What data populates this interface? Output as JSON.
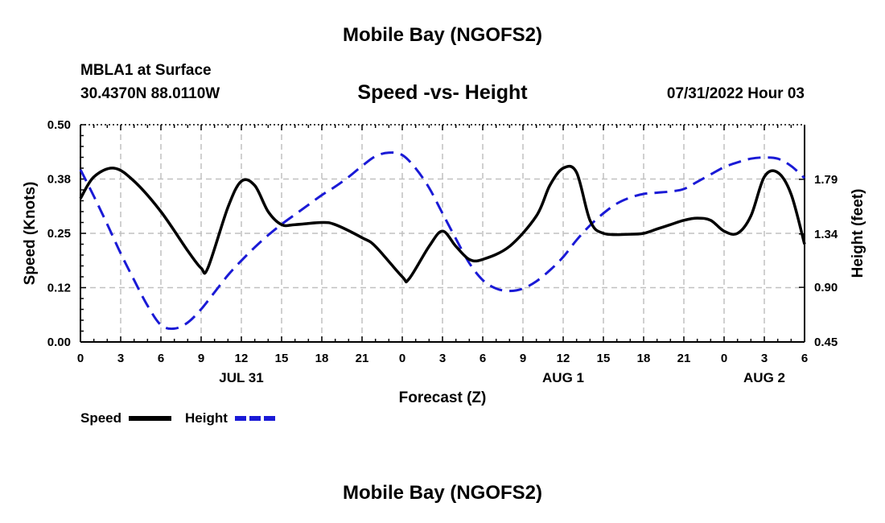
{
  "header": {
    "title": "Mobile Bay (NGOFS2)",
    "station": "MBLA1 at Surface",
    "coords": "30.4370N  88.0110W",
    "subtitle": "Speed -vs- Height",
    "datetime": "07/31/2022 Hour 03"
  },
  "footer": {
    "title": "Mobile Bay (NGOFS2)"
  },
  "chart_data": {
    "type": "line",
    "title": "Speed -vs- Height",
    "xlabel": "Forecast (Z)",
    "ylabel_left": "Speed (Knots)",
    "ylabel_right": "Height (feet)",
    "x_tick_labels": [
      "0",
      "3",
      "6",
      "9",
      "12",
      "15",
      "18",
      "21",
      "0",
      "3",
      "6",
      "9",
      "12",
      "15",
      "18",
      "21",
      "0",
      "3",
      "6"
    ],
    "date_labels": [
      {
        "hour": 12,
        "label": "JUL 31"
      },
      {
        "hour": 36,
        "label": "AUG 1"
      },
      {
        "hour": 51,
        "label": "AUG 2"
      }
    ],
    "x_range": [
      0,
      54
    ],
    "y_left_ticks": [
      "0.00",
      "0.12",
      "0.25",
      "0.38",
      "0.50"
    ],
    "y_left_range": [
      0,
      0.5
    ],
    "y_right_ticks": [
      "0.45",
      "0.90",
      "1.34",
      "1.79"
    ],
    "y_right_range": [
      0.45,
      2.24
    ],
    "grid": true,
    "legend": "bottom-left",
    "colors": {
      "speed": "#000000",
      "height": "#1a1ad6",
      "grid": "#c0c0c0"
    },
    "series": [
      {
        "name": "Speed",
        "axis": "left",
        "x": [
          0,
          1,
          2.5,
          4,
          6,
          8,
          9,
          9.5,
          11,
          12,
          13,
          14,
          15,
          16,
          18,
          19,
          21,
          22,
          24,
          24.5,
          26,
          27,
          28,
          29,
          30,
          32,
          34,
          35,
          36,
          37,
          38,
          39,
          41,
          42,
          43,
          44,
          45,
          46,
          47,
          48,
          49,
          50,
          51,
          52,
          53,
          54
        ],
        "values": [
          0.33,
          0.38,
          0.4,
          0.37,
          0.3,
          0.21,
          0.17,
          0.17,
          0.31,
          0.37,
          0.36,
          0.3,
          0.27,
          0.27,
          0.275,
          0.27,
          0.24,
          0.22,
          0.15,
          0.145,
          0.22,
          0.255,
          0.22,
          0.19,
          0.19,
          0.22,
          0.29,
          0.36,
          0.4,
          0.39,
          0.28,
          0.25,
          0.248,
          0.25,
          0.26,
          0.27,
          0.28,
          0.285,
          0.28,
          0.255,
          0.25,
          0.29,
          0.38,
          0.39,
          0.34,
          0.225
        ]
      },
      {
        "name": "Height",
        "axis": "right",
        "x": [
          0,
          1,
          2,
          3,
          4,
          5,
          6,
          7,
          8,
          9,
          10,
          11,
          12,
          13,
          14,
          15,
          16,
          17,
          18,
          19,
          20,
          21,
          22,
          23,
          24,
          25,
          26,
          27,
          28,
          29,
          30,
          31,
          32,
          33,
          34,
          35,
          36,
          37,
          38,
          39,
          40,
          41,
          42,
          43,
          44,
          45,
          46,
          47,
          48,
          49,
          50,
          51,
          52,
          53,
          54
        ],
        "values": [
          1.87,
          1.65,
          1.42,
          1.18,
          0.96,
          0.75,
          0.59,
          0.56,
          0.61,
          0.72,
          0.86,
          1.0,
          1.12,
          1.23,
          1.33,
          1.42,
          1.5,
          1.58,
          1.66,
          1.73,
          1.81,
          1.9,
          1.98,
          2.01,
          1.99,
          1.88,
          1.72,
          1.51,
          1.3,
          1.1,
          0.96,
          0.89,
          0.87,
          0.89,
          0.95,
          1.04,
          1.15,
          1.29,
          1.41,
          1.51,
          1.59,
          1.64,
          1.67,
          1.68,
          1.69,
          1.71,
          1.77,
          1.83,
          1.89,
          1.93,
          1.96,
          1.97,
          1.96,
          1.9,
          1.8
        ]
      }
    ]
  }
}
